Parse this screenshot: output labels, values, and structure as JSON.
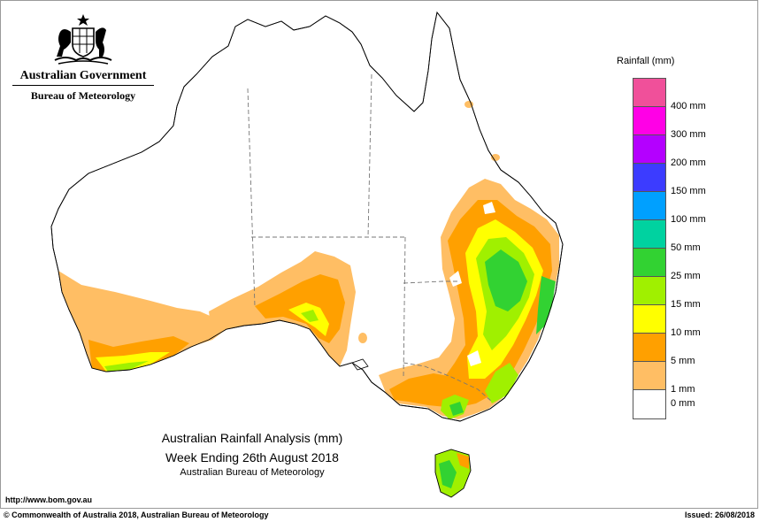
{
  "header": {
    "gov_title": "Australian Government",
    "bureau": "Bureau of Meteorology"
  },
  "map": {
    "title_line1": "Australian Rainfall Analysis (mm)",
    "title_line2": "Week Ending 26th August 2018",
    "title_line3": "Australian Bureau of Meteorology"
  },
  "legend": {
    "title": "Rainfall (mm)",
    "colors": [
      "#f0509a",
      "#ff00e6",
      "#b400ff",
      "#3c3cff",
      "#00a0ff",
      "#00d2a0",
      "#32d232",
      "#a0f000",
      "#ffff00",
      "#ffa000",
      "#ffbe64",
      "#ffffff"
    ],
    "labels": [
      "400 mm",
      "300 mm",
      "200 mm",
      "150 mm",
      "100 mm",
      "50 mm",
      "25 mm",
      "15 mm",
      "10 mm",
      "5 mm",
      "1 mm",
      "0 mm"
    ]
  },
  "footer": {
    "url": "http://www.bom.gov.au",
    "copyright": "© Commonwealth of Australia 2018, Australian Bureau of Meteorology",
    "issued": "Issued: 26/08/2018"
  }
}
